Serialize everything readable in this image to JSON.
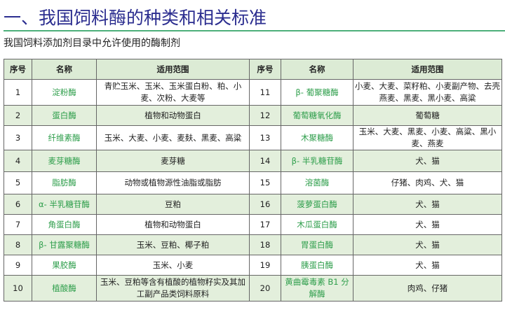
{
  "title": "一、我国饲料酶的种类和相关标准",
  "subtitle": "我国饲料添加剂目录中允许使用的酶制剂",
  "headers": {
    "no": "序号",
    "name": "名称",
    "scope": "适用范围"
  },
  "left": [
    {
      "no": "1",
      "name": "淀粉酶",
      "scope": "青贮玉米、玉米、玉米蛋白粉、粕、小麦、次粉、大麦等"
    },
    {
      "no": "2",
      "name": "蛋白酶",
      "scope": "植物和动物蛋白"
    },
    {
      "no": "3",
      "name": "纤维素酶",
      "scope": "玉米、大麦、小麦、麦麸、黑麦、高粱"
    },
    {
      "no": "4",
      "name": "麦芽糖酶",
      "scope": "麦芽糖"
    },
    {
      "no": "5",
      "name": "脂肪酶",
      "scope": "动物或植物源性油脂或脂肪"
    },
    {
      "no": "6",
      "name": "α- 半乳糖苷酶",
      "scope": "豆粕"
    },
    {
      "no": "7",
      "name": "角蛋白酶",
      "scope": "植物和动物蛋白"
    },
    {
      "no": "8",
      "name": "β- 甘露聚糖酶",
      "scope": "玉米、豆粕、椰子粕"
    },
    {
      "no": "9",
      "name": "果胶酶",
      "scope": "玉米、小麦"
    },
    {
      "no": "10",
      "name": "植酸酶",
      "scope": "玉米、豆粕等含有植酸的植物籽实及其加工副产品类饲料原料"
    }
  ],
  "right": [
    {
      "no": "11",
      "name": "β- 葡聚糖酶",
      "scope": "小麦、大麦、菜籽粕、小麦副产物、去壳燕麦、黑麦、黑小麦、高粱"
    },
    {
      "no": "12",
      "name": "葡萄糖氧化酶",
      "scope": "葡萄糖"
    },
    {
      "no": "13",
      "name": "木聚糖酶",
      "scope": "玉米、大麦、黑麦、小麦、高粱、黑小麦、燕麦"
    },
    {
      "no": "14",
      "name": "β- 半乳糖苷酶",
      "scope": "犬、猫"
    },
    {
      "no": "15",
      "name": "溶菌酶",
      "scope": "仔猪、肉鸡、犬、猫"
    },
    {
      "no": "16",
      "name": "菠萝蛋白酶",
      "scope": "犬、猫"
    },
    {
      "no": "17",
      "name": "木瓜蛋白酶",
      "scope": "犬、猫"
    },
    {
      "no": "18",
      "name": "胃蛋白酶",
      "scope": "犬、猫"
    },
    {
      "no": "19",
      "name": "胰蛋白酶",
      "scope": "犬、猫"
    },
    {
      "no": "20",
      "name": "黄曲霉毒素 B1 分解酶",
      "scope": "肉鸡、仔猪"
    }
  ]
}
